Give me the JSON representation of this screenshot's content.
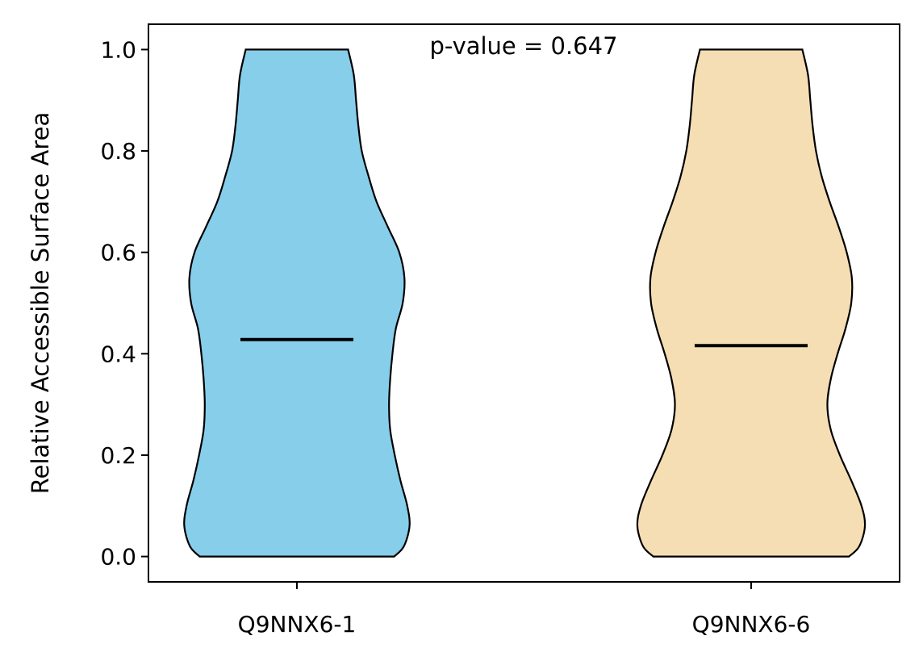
{
  "chart_data": {
    "type": "violin",
    "title": "",
    "xlabel": "",
    "ylabel": "Relative Accessible Surface Area",
    "ylim": [
      -0.05,
      1.05
    ],
    "yticks": [
      0.0,
      0.2,
      0.4,
      0.6,
      0.8,
      1.0
    ],
    "ytick_labels": [
      "0.0",
      "0.2",
      "0.4",
      "0.6",
      "0.8",
      "1.0"
    ],
    "annotation": "p-value = 0.647",
    "grid": false,
    "categories": [
      "Q9NNX6-1",
      "Q9NNX6-6"
    ],
    "series": [
      {
        "category": "Q9NNX6-1",
        "color": "#87CEEB",
        "median": 0.428,
        "min": 0.0,
        "max": 1.0,
        "density_profile": [
          [
            0.0,
            0.855
          ],
          [
            0.02,
            0.94
          ],
          [
            0.06,
            0.99
          ],
          [
            0.1,
            0.97
          ],
          [
            0.15,
            0.91
          ],
          [
            0.2,
            0.86
          ],
          [
            0.25,
            0.82
          ],
          [
            0.3,
            0.81
          ],
          [
            0.35,
            0.82
          ],
          [
            0.4,
            0.84
          ],
          [
            0.45,
            0.87
          ],
          [
            0.5,
            0.93
          ],
          [
            0.55,
            0.945
          ],
          [
            0.6,
            0.9
          ],
          [
            0.65,
            0.8
          ],
          [
            0.7,
            0.7
          ],
          [
            0.75,
            0.63
          ],
          [
            0.8,
            0.57
          ],
          [
            0.85,
            0.54
          ],
          [
            0.9,
            0.52
          ],
          [
            0.95,
            0.5
          ],
          [
            1.0,
            0.45
          ]
        ]
      },
      {
        "category": "Q9NNX6-6",
        "color": "#F5DEB3",
        "median": 0.416,
        "min": 0.0,
        "max": 1.0,
        "density_profile": [
          [
            0.0,
            0.86
          ],
          [
            0.02,
            0.95
          ],
          [
            0.06,
            1.0
          ],
          [
            0.1,
            0.97
          ],
          [
            0.15,
            0.88
          ],
          [
            0.2,
            0.78
          ],
          [
            0.25,
            0.7
          ],
          [
            0.3,
            0.67
          ],
          [
            0.35,
            0.7
          ],
          [
            0.4,
            0.76
          ],
          [
            0.45,
            0.83
          ],
          [
            0.5,
            0.88
          ],
          [
            0.55,
            0.885
          ],
          [
            0.6,
            0.84
          ],
          [
            0.65,
            0.77
          ],
          [
            0.7,
            0.69
          ],
          [
            0.75,
            0.62
          ],
          [
            0.8,
            0.57
          ],
          [
            0.85,
            0.54
          ],
          [
            0.9,
            0.52
          ],
          [
            0.95,
            0.5
          ],
          [
            1.0,
            0.45
          ]
        ]
      }
    ]
  }
}
